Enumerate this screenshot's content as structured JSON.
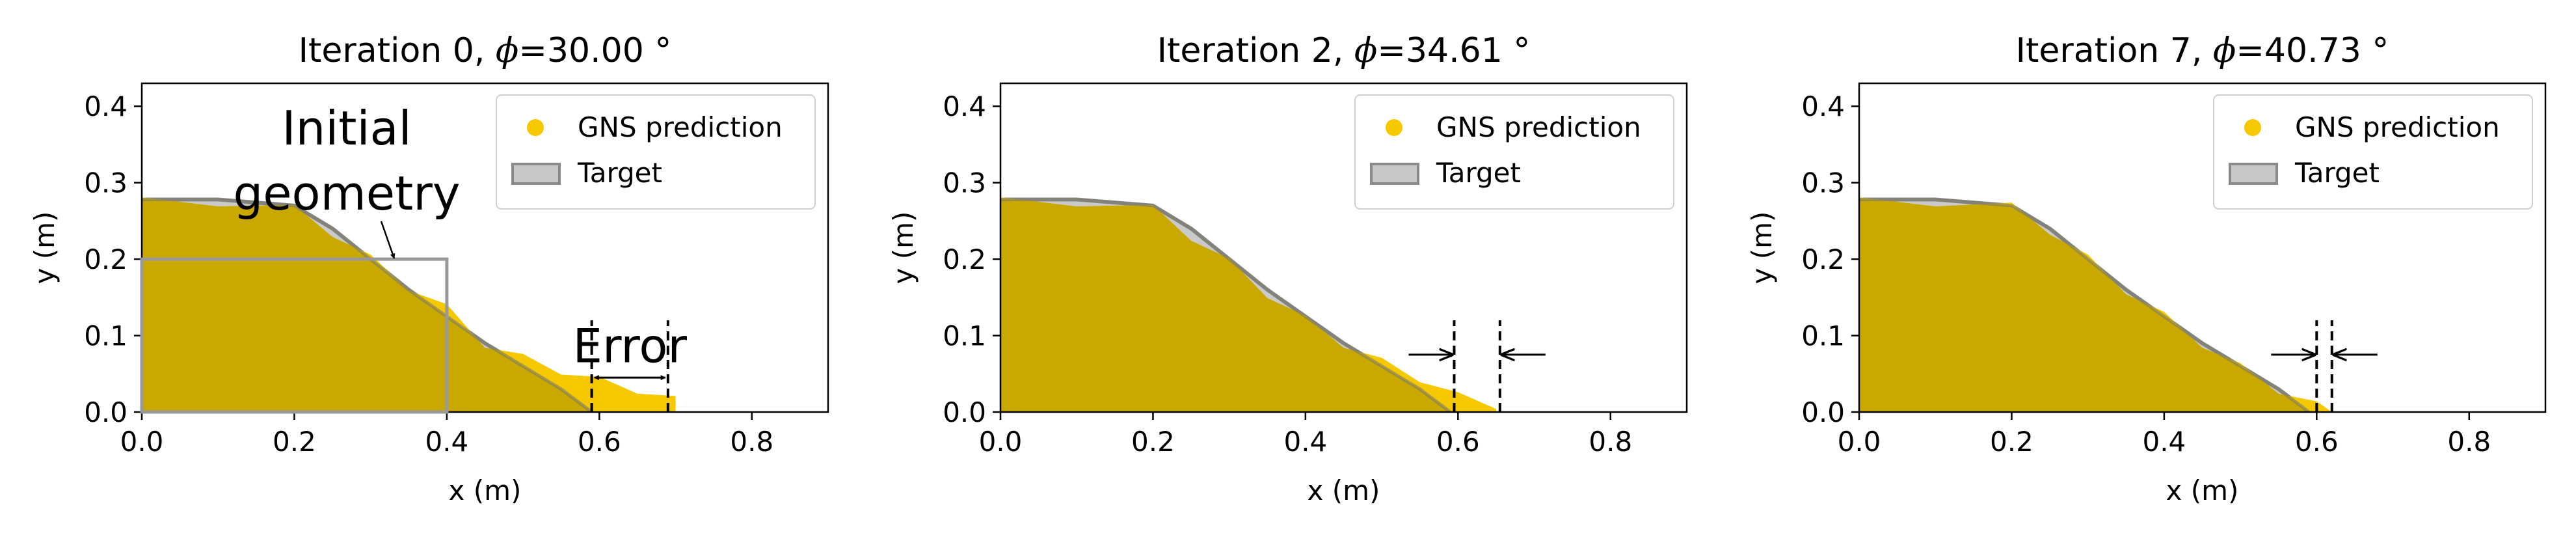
{
  "chart_data": [
    {
      "type": "area",
      "title_prefix": "Iteration 0, ",
      "title_phi": "ϕ",
      "title_value": "=30.00 °",
      "xlabel": "x (m)",
      "ylabel": "y (m)",
      "xlim": [
        0.0,
        0.9
      ],
      "ylim": [
        0.0,
        0.43
      ],
      "xticks": [
        "0.0",
        "0.2",
        "0.4",
        "0.6",
        "0.8"
      ],
      "yticks": [
        "0.0",
        "0.1",
        "0.2",
        "0.3",
        "0.4"
      ],
      "grid": false,
      "legend": {
        "position": "top-right",
        "entries": [
          "GNS prediction",
          "Target"
        ]
      },
      "colors": {
        "prediction": "#f5c800",
        "target": "#c8c8c8",
        "overlap": "#c9a800"
      },
      "series": [
        {
          "name": "GNS prediction",
          "x": [
            0.0,
            0.1,
            0.2,
            0.25,
            0.3,
            0.35,
            0.4,
            0.45,
            0.5,
            0.55,
            0.6,
            0.65,
            0.7
          ],
          "y": [
            0.275,
            0.275,
            0.265,
            0.235,
            0.2,
            0.165,
            0.135,
            0.09,
            0.07,
            0.055,
            0.04,
            0.03,
            0.015
          ]
        },
        {
          "name": "Target",
          "x": [
            0.0,
            0.1,
            0.2,
            0.25,
            0.3,
            0.35,
            0.4,
            0.45,
            0.5,
            0.55,
            0.59
          ],
          "y": [
            0.278,
            0.278,
            0.27,
            0.24,
            0.2,
            0.16,
            0.125,
            0.09,
            0.06,
            0.03,
            0.0
          ]
        }
      ],
      "annotations": {
        "initial_geometry": {
          "label_line1": "Initial",
          "label_line2": "geometry",
          "x": [
            0.0,
            0.4
          ],
          "y": [
            0.0,
            0.2
          ]
        },
        "error": {
          "label": "Error",
          "x_start": 0.59,
          "x_end": 0.69,
          "y": 0.045
        }
      }
    },
    {
      "type": "area",
      "title_prefix": "Iteration 2, ",
      "title_phi": "ϕ",
      "title_value": "=34.61 °",
      "xlabel": "x (m)",
      "ylabel": "y (m)",
      "xlim": [
        0.0,
        0.9
      ],
      "ylim": [
        0.0,
        0.43
      ],
      "xticks": [
        "0.0",
        "0.2",
        "0.4",
        "0.6",
        "0.8"
      ],
      "yticks": [
        "0.0",
        "0.1",
        "0.2",
        "0.3",
        "0.4"
      ],
      "grid": false,
      "legend": {
        "position": "top-right",
        "entries": [
          "GNS prediction",
          "Target"
        ]
      },
      "colors": {
        "prediction": "#f5c800",
        "target": "#c8c8c8",
        "overlap": "#c9a800"
      },
      "series": [
        {
          "name": "GNS prediction",
          "x": [
            0.0,
            0.1,
            0.2,
            0.25,
            0.3,
            0.35,
            0.4,
            0.45,
            0.5,
            0.55,
            0.6,
            0.65
          ],
          "y": [
            0.275,
            0.275,
            0.265,
            0.23,
            0.195,
            0.155,
            0.12,
            0.09,
            0.065,
            0.045,
            0.02,
            0.01
          ]
        },
        {
          "name": "Target",
          "x": [
            0.0,
            0.1,
            0.2,
            0.25,
            0.3,
            0.35,
            0.4,
            0.45,
            0.5,
            0.55,
            0.59
          ],
          "y": [
            0.278,
            0.278,
            0.27,
            0.24,
            0.2,
            0.16,
            0.125,
            0.09,
            0.06,
            0.03,
            0.0
          ]
        }
      ],
      "annotations": {
        "error": {
          "x_start": 0.595,
          "x_end": 0.655,
          "y": 0.075
        }
      }
    },
    {
      "type": "area",
      "title_prefix": "Iteration 7, ",
      "title_phi": "ϕ",
      "title_value": "=40.73 °",
      "xlabel": "x (m)",
      "ylabel": "y (m)",
      "xlim": [
        0.0,
        0.9
      ],
      "ylim": [
        0.0,
        0.43
      ],
      "xticks": [
        "0.0",
        "0.2",
        "0.4",
        "0.6",
        "0.8"
      ],
      "yticks": [
        "0.0",
        "0.1",
        "0.2",
        "0.3",
        "0.4"
      ],
      "grid": false,
      "legend": {
        "position": "top-right",
        "entries": [
          "GNS prediction",
          "Target"
        ]
      },
      "colors": {
        "prediction": "#f5c800",
        "target": "#c8c8c8",
        "overlap": "#c9a800"
      },
      "series": [
        {
          "name": "GNS prediction",
          "x": [
            0.0,
            0.1,
            0.2,
            0.25,
            0.3,
            0.35,
            0.4,
            0.45,
            0.5,
            0.55,
            0.6,
            0.62
          ],
          "y": [
            0.275,
            0.275,
            0.268,
            0.238,
            0.2,
            0.16,
            0.125,
            0.09,
            0.058,
            0.03,
            0.008,
            0.004
          ]
        },
        {
          "name": "Target",
          "x": [
            0.0,
            0.1,
            0.2,
            0.25,
            0.3,
            0.35,
            0.4,
            0.45,
            0.5,
            0.55,
            0.59
          ],
          "y": [
            0.278,
            0.278,
            0.27,
            0.24,
            0.2,
            0.16,
            0.125,
            0.09,
            0.06,
            0.03,
            0.0
          ]
        }
      ],
      "annotations": {
        "error": {
          "x_start": 0.6,
          "x_end": 0.62,
          "y": 0.075
        }
      }
    }
  ]
}
